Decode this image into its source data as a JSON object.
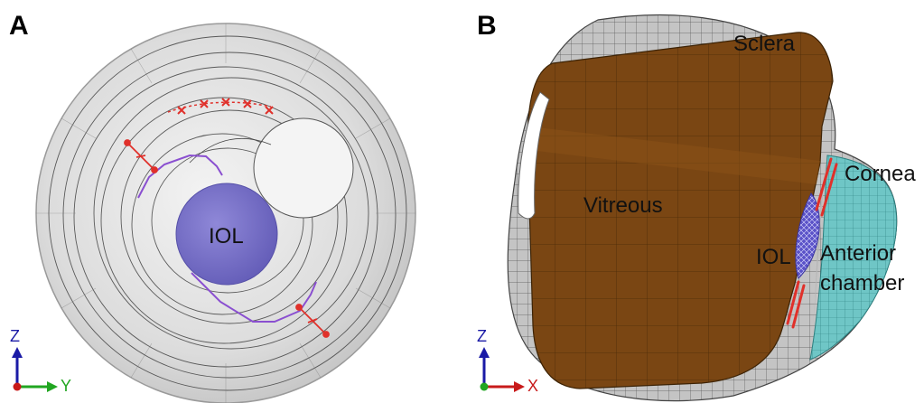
{
  "panel_a": {
    "letter": "A",
    "labels": {
      "iol": "IOL"
    },
    "axes": {
      "vertical": "Z",
      "horizontal": "Y"
    }
  },
  "panel_b": {
    "letter": "B",
    "labels": {
      "sclera": "Sclera",
      "cornea": "Cornea",
      "vitreous": "Vitreous",
      "iol": "IOL",
      "anterior": "Anterior",
      "chamber": "chamber"
    },
    "axes": {
      "vertical": "Z",
      "horizontal": "X"
    }
  },
  "colors": {
    "iol": "#7b74c9",
    "vitreous": "#7a4613",
    "cornea": "#6fc6c6",
    "haptic": "#8a4fd0",
    "suture": "#e0302a",
    "axis_z": "#1a1aa6",
    "axis_y": "#21a621",
    "axis_x": "#c81a1a"
  }
}
